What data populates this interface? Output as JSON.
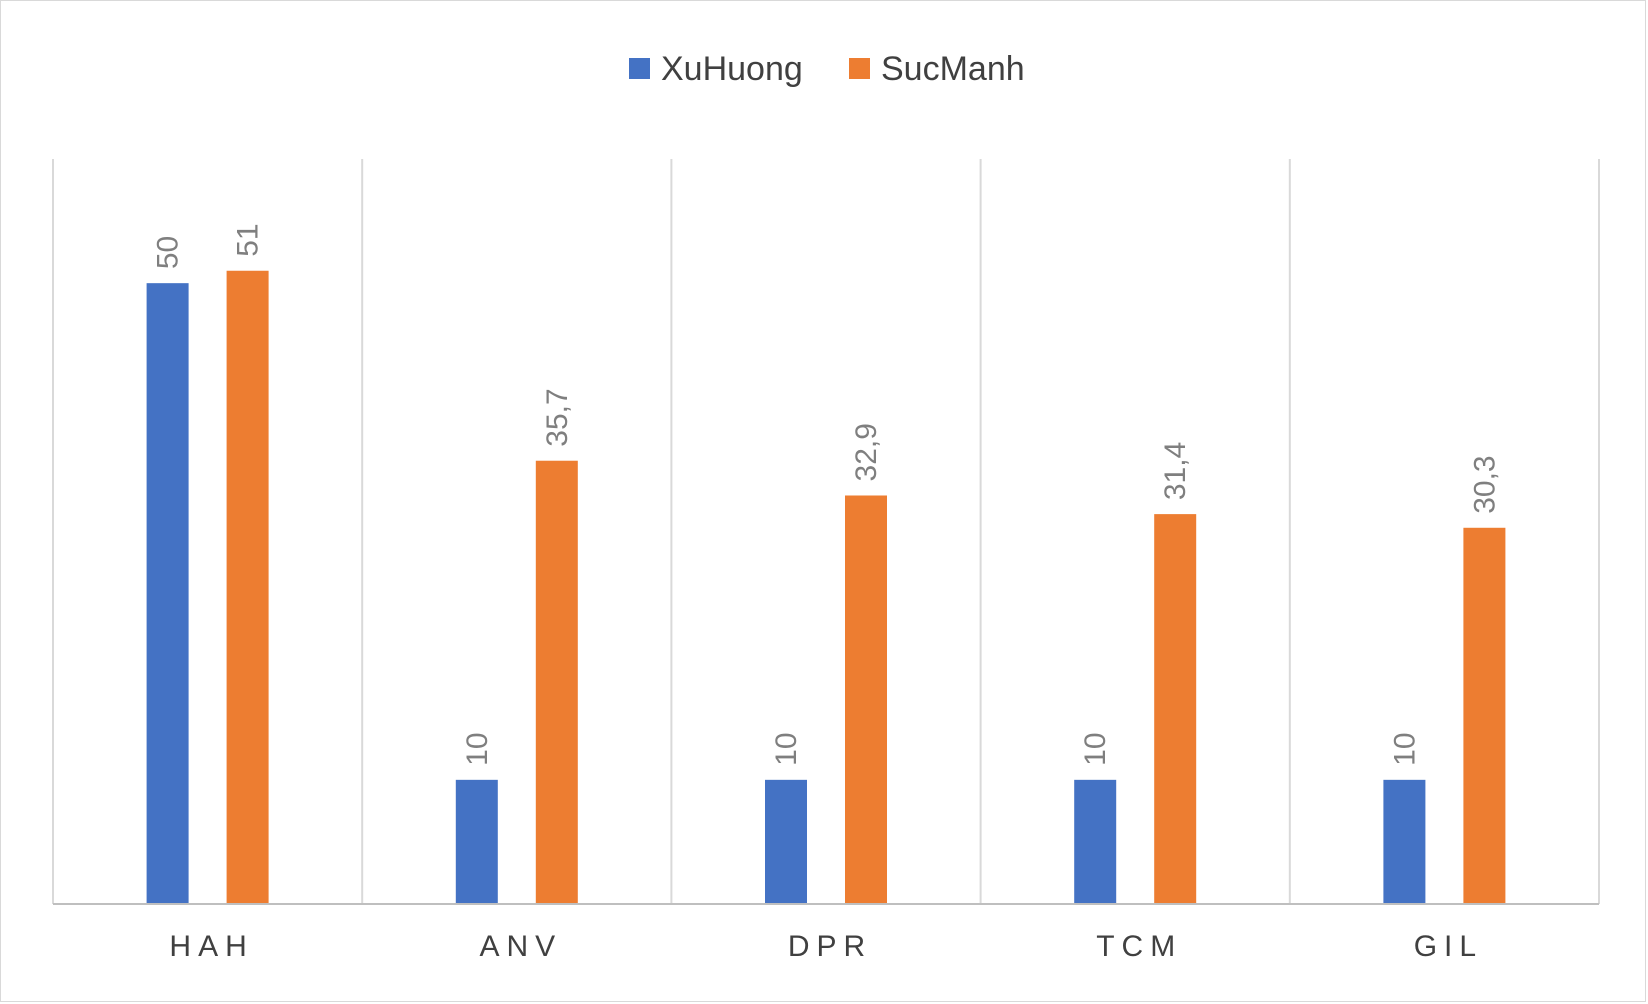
{
  "chart_data": {
    "type": "bar",
    "categories": [
      "HAH",
      "ANV",
      "DPR",
      "TCM",
      "GIL"
    ],
    "series": [
      {
        "name": "XuHuong",
        "values": [
          50,
          10,
          10,
          10,
          10
        ],
        "labels": [
          "50",
          "10",
          "10",
          "10",
          "10"
        ],
        "color": "#4472C4"
      },
      {
        "name": "SucManh",
        "values": [
          51,
          35.7,
          32.9,
          31.4,
          30.3
        ],
        "labels": [
          "51",
          "35,7",
          "32,9",
          "31,4",
          "30,3"
        ],
        "color": "#ED7D31"
      }
    ],
    "title": "",
    "xlabel": "",
    "ylabel": "",
    "ylim": [
      0,
      60
    ],
    "grid": "vertical category separators",
    "legend": "top-center",
    "data_labels": "rotated, above bars"
  }
}
